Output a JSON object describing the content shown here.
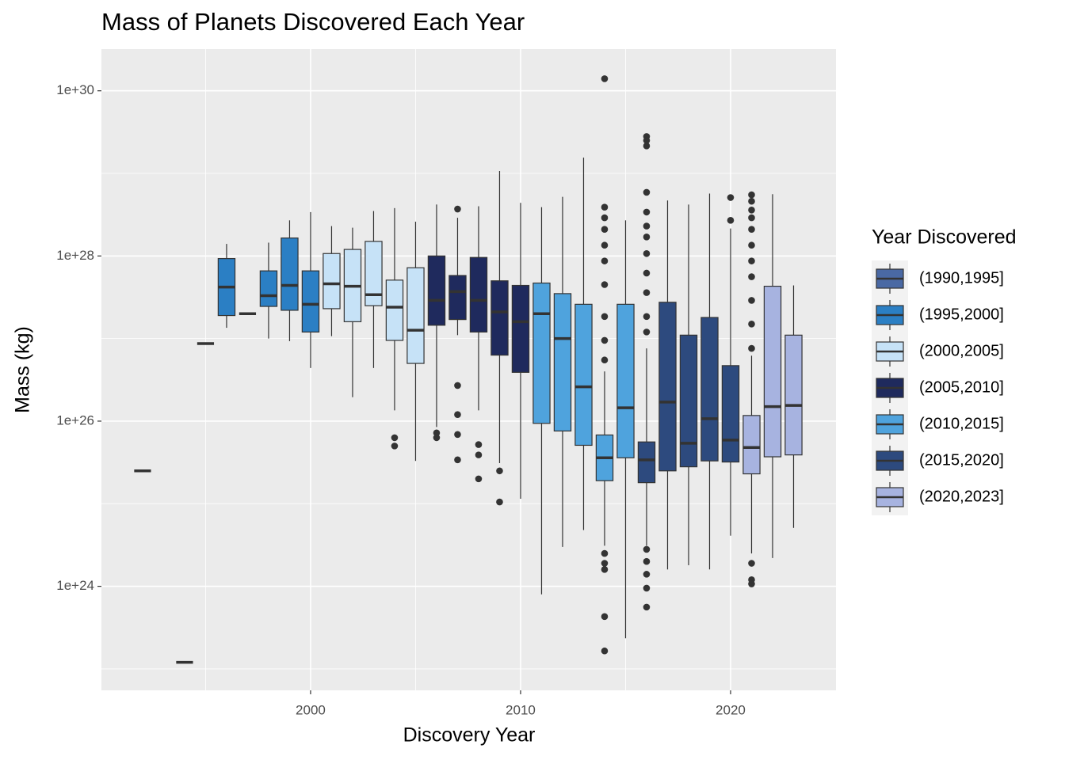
{
  "chart_data": {
    "type": "boxplot",
    "title": "Mass of Planets Discovered Each Year",
    "x_label": "Discovery Year",
    "y_label": "Mass (kg)",
    "legend_title": "Year Discovered",
    "y_log": true,
    "grid": true,
    "legend_position": "right",
    "xlim": [
      1990.04,
      2025.02
    ],
    "ylim": [
      5.5e+22,
      3.2e+30
    ],
    "xticks": [
      2000,
      2010,
      2020
    ],
    "yticks": [
      {
        "value": 1e+24,
        "label": "1e+24"
      },
      {
        "value": 1e+26,
        "label": "1e+26"
      },
      {
        "value": 1e+28,
        "label": "1e+28"
      },
      {
        "value": 1e+30,
        "label": "1e+30"
      }
    ],
    "x_minor_grid": [
      1995,
      2005,
      2015
    ],
    "y_minor_grid": [
      1e+23,
      1e+25,
      1e+27,
      1e+29
    ],
    "series": [
      {
        "name": "(1990,1995]",
        "color": "#4a69a4",
        "x": [
          1992,
          1994,
          1995
        ],
        "low": [
          2.5e+25,
          1.2e+23,
          8.7e+26
        ],
        "q1": [
          2.5e+25,
          1.2e+23,
          8.7e+26
        ],
        "median": [
          2.5e+25,
          1.2e+23,
          8.7e+26
        ],
        "q3": [
          2.5e+25,
          1.2e+23,
          8.7e+26
        ],
        "high": [
          2.5e+25,
          1.2e+23,
          8.7e+26
        ],
        "outliers": [
          [],
          [],
          []
        ]
      },
      {
        "name": "(1995,2000]",
        "color": "#2b7fc4",
        "x": [
          1996,
          1997,
          1998,
          1999,
          2000
        ],
        "low": [
          1.35e+27,
          2e+27,
          1e+27,
          9.3e+26,
          4.4e+26
        ],
        "q1": [
          1.9e+27,
          2e+27,
          2.45e+27,
          2.2e+27,
          1.2e+27
        ],
        "median": [
          4.2e+27,
          2e+27,
          3.3e+27,
          4.4e+27,
          2.6e+27
        ],
        "q3": [
          9.3e+27,
          2e+27,
          6.6e+27,
          1.65e+28,
          6.6e+27
        ],
        "high": [
          1.4e+28,
          2e+27,
          1.45e+28,
          2.7e+28,
          3.4e+28
        ],
        "outliers": [
          [],
          [],
          [],
          [],
          []
        ]
      },
      {
        "name": "(2000,2005]",
        "color": "#c6e2f7",
        "x": [
          2001,
          2002,
          2003,
          2004,
          2005
        ],
        "low": [
          1.07e+27,
          1.95e+26,
          4.4e+26,
          1.35e+26,
          3.3e+25
        ],
        "q1": [
          2.3e+27,
          1.6e+27,
          2.5e+27,
          9.5e+26,
          5e+26
        ],
        "median": [
          4.6e+27,
          4.3e+27,
          3.4e+27,
          2.4e+27,
          1.26e+27
        ],
        "q3": [
          1.07e+28,
          1.2e+28,
          1.5e+28,
          5.1e+27,
          7.2e+27
        ],
        "high": [
          2.3e+28,
          2.2e+28,
          3.5e+28,
          3.8e+28,
          2.6e+28
        ],
        "outliers": [
          [],
          [],
          [],
          [
            6.3e+25,
            5e+25
          ],
          []
        ]
      },
      {
        "name": "(2005,2010]",
        "color": "#1f2a5d",
        "x": [
          2006,
          2007,
          2008,
          2009,
          2010
        ],
        "low": [
          8.5e+25,
          1.1e+27,
          1.35e+26,
          3.1e+25,
          1.15e+25
        ],
        "q1": [
          1.45e+27,
          1.7e+27,
          1.2e+27,
          6.3e+26,
          3.9e+26
        ],
        "median": [
          2.9e+27,
          3.7e+27,
          2.9e+27,
          2.1e+27,
          1.6e+27
        ],
        "q3": [
          1e+28,
          5.8e+27,
          9.6e+27,
          5e+27,
          4.4e+27
        ],
        "high": [
          4.2e+28,
          2.9e+28,
          4e+28,
          1.07e+29,
          4.4e+28
        ],
        "outliers": [
          [
            7.2e+25,
            6.3e+25
          ],
          [
            3.7e+28,
            2.7e+26,
            1.2e+26,
            6.9e+25,
            3.4e+25
          ],
          [
            5.2e+25,
            3.9e+25,
            2e+25
          ],
          [
            2.5e+25,
            1.05e+25
          ],
          []
        ]
      },
      {
        "name": "(2010,2015]",
        "color": "#4fa3dd",
        "x": [
          2011,
          2012,
          2013,
          2014,
          2015
        ],
        "low": [
          8e+23,
          3e+24,
          4.8e+24,
          3.1e+24,
          2.35e+23
        ],
        "q1": [
          9.4e+25,
          7.6e+25,
          5.1e+25,
          1.9e+25,
          3.6e+25
        ],
        "median": [
          2e+27,
          1e+27,
          2.6e+26,
          3.6e+25,
          1.45e+26
        ],
        "q3": [
          4.7e+27,
          3.5e+27,
          2.6e+27,
          6.8e+25,
          2.6e+27
        ],
        "high": [
          3.9e+28,
          5.2e+28,
          1.55e+29,
          4e+26,
          2.7e+28
        ],
        "outliers": [
          [],
          [],
          [],
          [
            1.4e+30,
            3.9e+28,
            2.9e+28,
            2.1e+28,
            1.35e+28,
            8.7e+27,
            4.5e+27,
            1.85e+27,
            9.5e+26,
            5.5e+26,
            2.5e+24,
            1.9e+24,
            1.6e+24,
            4.3e+23,
            1.65e+23
          ],
          []
        ]
      },
      {
        "name": "(2015,2020]",
        "color": "#2d4a7e",
        "x": [
          2016,
          2017,
          2018,
          2019,
          2020
        ],
        "low": [
          3.1e+24,
          1.6e+24,
          1.8e+24,
          1.6e+24,
          4.1e+24
        ],
        "q1": [
          1.8e+25,
          2.5e+25,
          2.8e+25,
          3.3e+25,
          3.2e+25
        ],
        "median": [
          3.4e+25,
          1.7e+26,
          5.4e+25,
          1.07e+26,
          5.9e+25
        ],
        "q3": [
          5.6e+25,
          2.75e+27,
          1.1e+27,
          1.8e+27,
          4.7e+26
        ],
        "high": [
          7.6e+26,
          4.7e+28,
          4.2e+28,
          5.7e+28,
          2.15e+28
        ],
        "outliers": [
          [
            2.8e+29,
            2.5e+29,
            2.15e+29,
            5.9e+28,
            3.4e+28,
            2.3e+28,
            1.7e+28,
            1.07e+28,
            6.2e+27,
            3.6e+27,
            1.85e+27,
            1.2e+27,
            2.8e+24,
            2e+24,
            1.4e+24,
            9.5e+23,
            5.6e+23
          ],
          [],
          [],
          [],
          [
            5.1e+28,
            2.7e+28
          ]
        ]
      },
      {
        "name": "(2020,2023]",
        "color": "#a7b3e0",
        "x": [
          2021,
          2022,
          2023
        ],
        "low": [
          2.5e+24,
          2.2e+24,
          5.1e+24
        ],
        "q1": [
          2.3e+25,
          3.7e+25,
          3.9e+25
        ],
        "median": [
          4.8e+25,
          1.5e+26,
          1.55e+26
        ],
        "q3": [
          1.17e+26,
          4.3e+27,
          1.1e+27
        ],
        "high": [
          6.2e+26,
          5.6e+28,
          4.4e+27
        ],
        "outliers": [
          [
            5.5e+28,
            4.6e+28,
            3.6e+28,
            2.9e+28,
            2.1e+28,
            1.35e+28,
            8.7e+27,
            5.6e+27,
            2.9e+27,
            1.5e+27,
            7.6e+26,
            1.9e+24,
            1.2e+24,
            1.07e+24
          ],
          [],
          []
        ]
      }
    ]
  }
}
